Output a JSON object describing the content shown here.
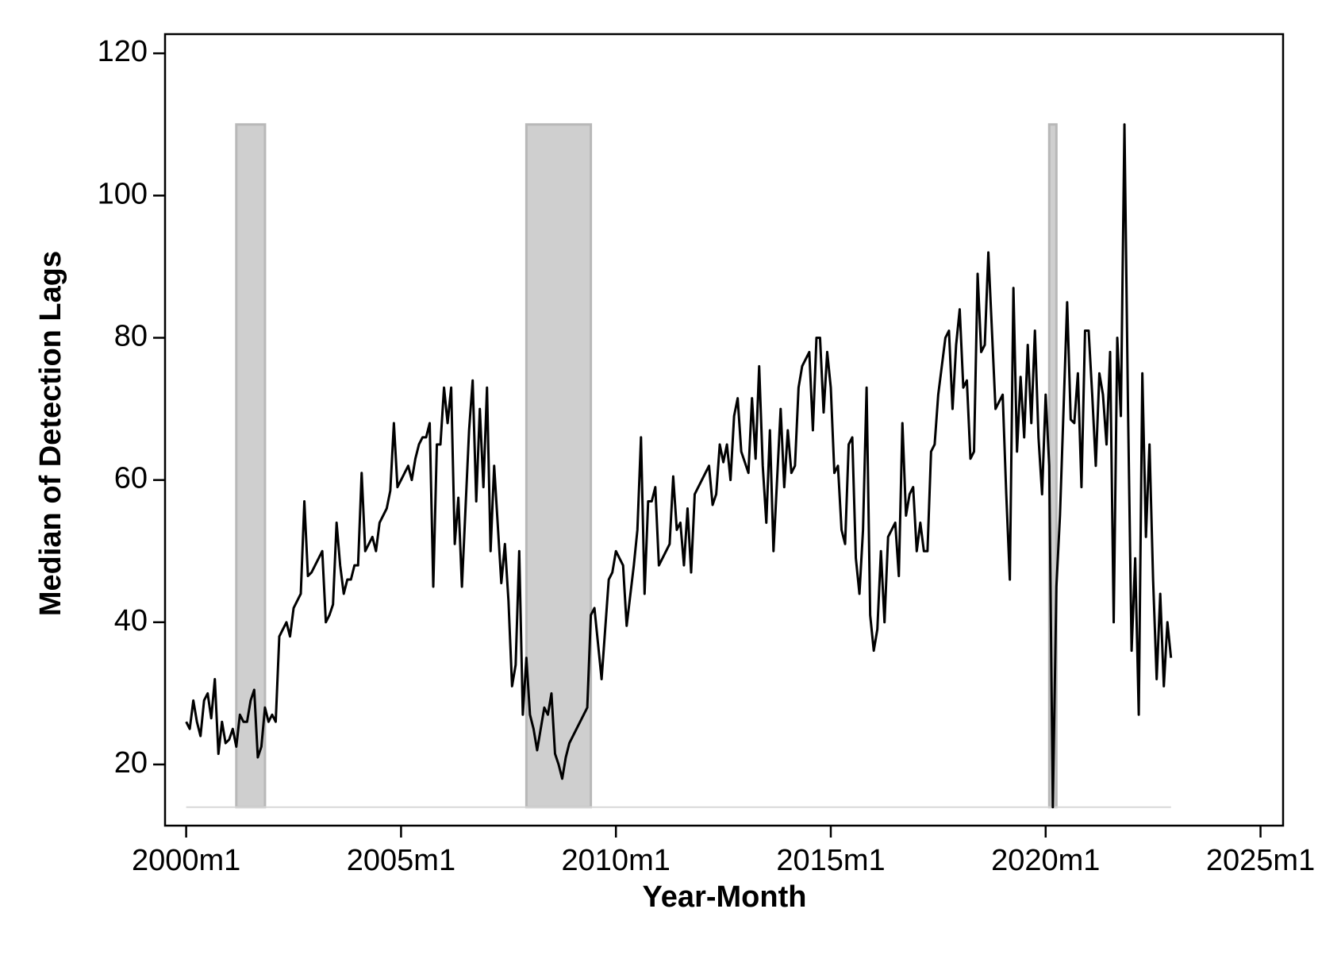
{
  "chart_data": {
    "type": "line",
    "x_label": "Year-Month",
    "y_label": "Median of Detection Lags",
    "x": [
      480,
      481,
      482,
      483,
      484,
      485,
      486,
      487,
      488,
      489,
      490,
      491,
      492,
      493,
      494,
      495,
      496,
      497,
      498,
      499,
      500,
      501,
      502,
      503,
      504,
      505,
      506,
      508,
      509,
      510,
      512,
      513,
      514,
      515,
      518,
      519,
      520,
      521,
      522,
      523,
      524,
      525,
      526,
      527,
      528,
      529,
      530,
      532,
      533,
      534,
      536,
      537,
      538,
      539,
      542,
      543,
      544,
      545,
      546,
      547,
      548,
      549,
      550,
      551,
      552,
      553,
      554,
      555,
      556,
      557,
      559,
      560,
      561,
      562,
      563,
      564,
      565,
      566,
      568,
      569,
      570,
      571,
      572,
      573,
      574,
      575,
      576,
      577,
      578,
      580,
      581,
      582,
      583,
      584,
      585,
      586,
      587,
      592,
      593,
      594,
      596,
      598,
      599,
      600,
      602,
      603,
      605,
      606,
      607,
      608,
      609,
      610,
      611,
      612,
      615,
      616,
      617,
      618,
      619,
      620,
      621,
      622,
      626,
      627,
      628,
      629,
      630,
      631,
      632,
      633,
      634,
      635,
      637,
      638,
      639,
      640,
      641,
      642,
      643,
      644,
      646,
      647,
      648,
      649,
      650,
      651,
      652,
      654,
      655,
      656,
      657,
      658,
      659,
      660,
      661,
      662,
      663,
      664,
      665,
      666,
      667,
      668,
      669,
      670,
      671,
      672,
      673,
      674,
      675,
      676,
      678,
      679,
      680,
      681,
      682,
      683,
      684,
      685,
      686,
      687,
      688,
      689,
      690,
      692,
      693,
      694,
      695,
      696,
      697,
      698,
      699,
      700,
      701,
      702,
      703,
      704,
      706,
      708,
      709,
      710,
      711,
      712,
      713,
      714,
      715,
      716,
      717,
      718,
      719,
      720,
      721,
      722,
      723,
      724,
      726,
      727,
      728,
      729,
      730,
      731,
      732,
      733,
      734,
      735,
      736,
      737,
      738,
      739,
      740,
      741,
      742,
      743,
      744,
      745,
      746,
      747,
      748,
      749,
      750,
      751,
      752,
      753,
      754,
      755
    ],
    "values": [
      26,
      25,
      29,
      26,
      24,
      29,
      30,
      26.5,
      32,
      21.5,
      26,
      23,
      23.5,
      25,
      22.5,
      27,
      26,
      26,
      29,
      30.5,
      21,
      22.5,
      28,
      26,
      27,
      26,
      38,
      40,
      38,
      42,
      44,
      57,
      46.5,
      47,
      50,
      40,
      41,
      42.5,
      54,
      48,
      44,
      46,
      46,
      48,
      48,
      61,
      50,
      52,
      50,
      54,
      56,
      58.5,
      68,
      59,
      62,
      60,
      63,
      65,
      66,
      66,
      68,
      45,
      65,
      65,
      73,
      68,
      73,
      51,
      57.5,
      45,
      67,
      74,
      57,
      70,
      59,
      73,
      50,
      62,
      45.5,
      51,
      43,
      31,
      34,
      50,
      27,
      35,
      27,
      25,
      22,
      28,
      27,
      30,
      21.5,
      20,
      18,
      21,
      23,
      28,
      41,
      42,
      32,
      46,
      47,
      50,
      48,
      39.5,
      48,
      53,
      66,
      44,
      57,
      57,
      59,
      48,
      51,
      60.5,
      53,
      54,
      48,
      56,
      47,
      58,
      62,
      56.5,
      58,
      65,
      62.5,
      65,
      60,
      69,
      71.5,
      64,
      61,
      71.5,
      63,
      76,
      62,
      54,
      67,
      50,
      70,
      59,
      67,
      61,
      62,
      73,
      76,
      78,
      67,
      80,
      80,
      69.5,
      78,
      73,
      61,
      62,
      53,
      51,
      65,
      66,
      49,
      44,
      53,
      73,
      41,
      36,
      39,
      50,
      40,
      52,
      54,
      46.5,
      68,
      55,
      58,
      59,
      50,
      54,
      50,
      50,
      64,
      65,
      72,
      80,
      81,
      70,
      79,
      84,
      73,
      74,
      63,
      64,
      89,
      78,
      79,
      92,
      70,
      72,
      58,
      46,
      87,
      64,
      74.5,
      66,
      79,
      68,
      81,
      66,
      58,
      72,
      62,
      14,
      45,
      55,
      85,
      68.5,
      68,
      75,
      59,
      81,
      81,
      72,
      62,
      75,
      72,
      65,
      78,
      40,
      80,
      69,
      110,
      70,
      36,
      49,
      27,
      75,
      52,
      65,
      46,
      32,
      44,
      31,
      40,
      35
    ],
    "color": "#000000",
    "shaded_periods": [
      {
        "start": 494,
        "end": 502
      },
      {
        "start": 575,
        "end": 593
      },
      {
        "start": 721,
        "end": 723
      }
    ],
    "shade_ylim": [
      14,
      110
    ],
    "shade_color": "#cfcfcf",
    "xlim": [
      474.1,
      786.3
    ],
    "xticks": [
      {
        "value": 480,
        "label": "2000m1"
      },
      {
        "value": 540,
        "label": "2005m1"
      },
      {
        "value": 600,
        "label": "2010m1"
      },
      {
        "value": 660,
        "label": "2015m1"
      },
      {
        "value": 720,
        "label": "2020m1"
      },
      {
        "value": 780,
        "label": "2025m1"
      }
    ],
    "ylim": [
      11.4,
      122.7
    ],
    "yticks": [
      20,
      40,
      60,
      80,
      100,
      120
    ],
    "grid": false
  }
}
